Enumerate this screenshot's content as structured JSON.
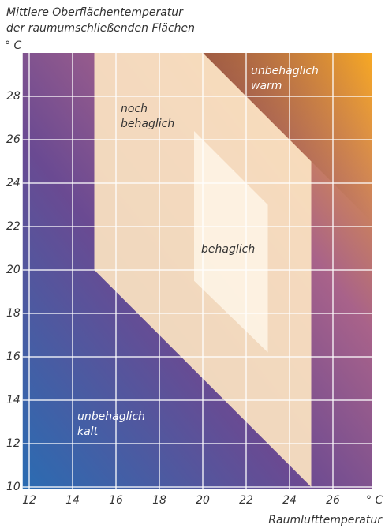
{
  "chart_data": {
    "type": "zones",
    "title": [
      "Mittlere Oberflächentemperatur",
      "der raumumschließenden Flächen"
    ],
    "y_unit": "° C",
    "x_unit": "° C",
    "xlabel": "Raumlufttemperatur",
    "xlim": [
      11.7,
      27.8
    ],
    "ylim": [
      9.9,
      30
    ],
    "xticks": [
      12,
      14,
      16,
      18,
      20,
      22,
      24,
      26
    ],
    "yticks": [
      10,
      12,
      14,
      16,
      18,
      20,
      22,
      24,
      26,
      28
    ],
    "grid": true,
    "zones": [
      {
        "color": "#8a4a1c",
        "points": [
          [
            20,
            30
          ],
          [
            25,
            25
          ],
          [
            27.8,
            22.2
          ],
          [
            27.8,
            30
          ]
        ]
      },
      {
        "color": "#fbe3c2",
        "points": [
          [
            15,
            30
          ],
          [
            15,
            20
          ],
          [
            25,
            10
          ],
          [
            25,
            25
          ],
          [
            20,
            30
          ]
        ]
      },
      {
        "color": "#fdf2e3",
        "points": [
          [
            19.6,
            26.4
          ],
          [
            23,
            23
          ],
          [
            23,
            16.2
          ],
          [
            19.6,
            19.5
          ]
        ]
      }
    ],
    "annotations": [
      {
        "lines": [
          "noch",
          "behaglich"
        ],
        "color": "#333333"
      },
      {
        "lines": [
          "behaglich"
        ],
        "color": "#333333"
      },
      {
        "lines": [
          "unbehaglich",
          "warm"
        ],
        "color": "#ffffff"
      },
      {
        "lines": [
          "unbehaglich",
          "kalt"
        ],
        "color": "#ffffff"
      }
    ]
  }
}
